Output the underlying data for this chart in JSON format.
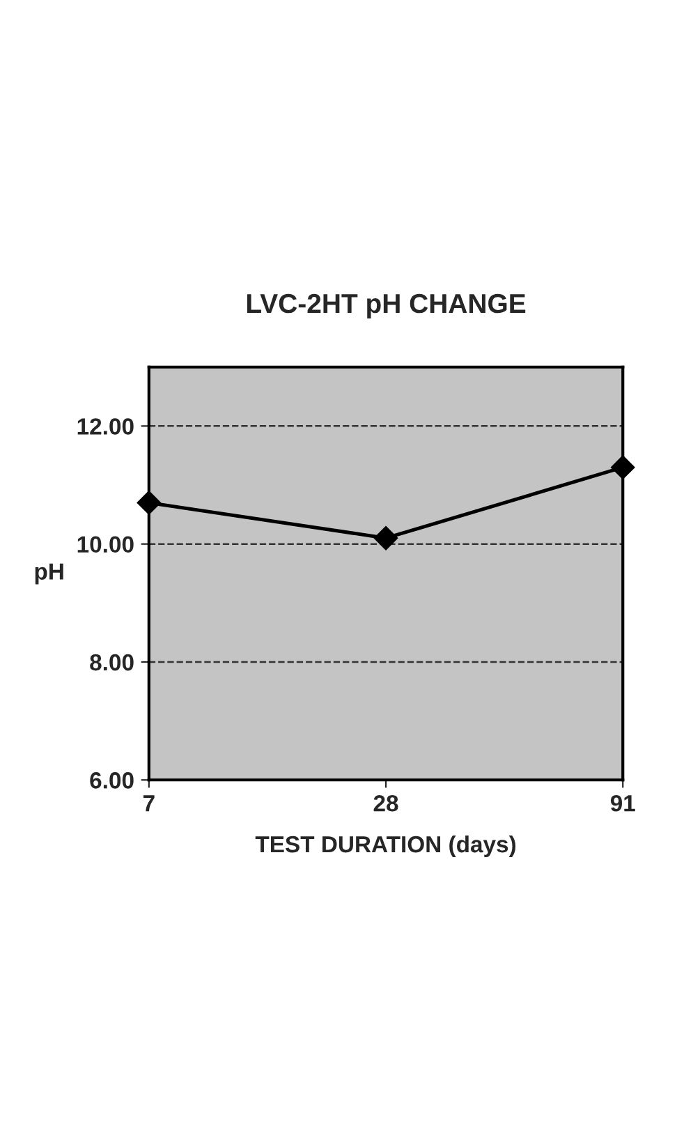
{
  "chart_data": {
    "type": "line",
    "title": "LVC-2HT pH CHANGE",
    "xlabel": "TEST DURATION (days)",
    "ylabel": "pH",
    "categories": [
      "7",
      "28",
      "91"
    ],
    "series": [
      {
        "color": "#000000",
        "values": [
          10.7,
          10.1,
          11.3
        ]
      }
    ],
    "ylim": [
      6,
      13
    ],
    "yticks": [
      {
        "value": 6,
        "label": "6.00"
      },
      {
        "value": 8,
        "label": "8.00"
      },
      {
        "value": 10,
        "label": "10.00"
      },
      {
        "value": 12,
        "label": "12.00"
      }
    ],
    "grid": "y",
    "marker": "diamond",
    "line_style": "solid",
    "legend": false
  }
}
